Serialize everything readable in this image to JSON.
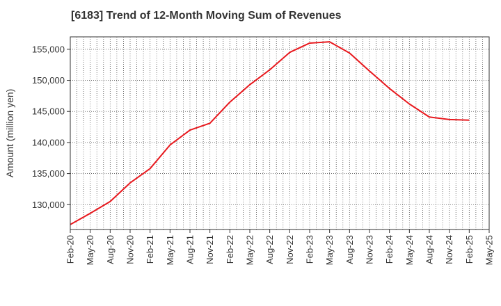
{
  "chart_data": {
    "type": "line",
    "title": "[6183]  Trend of 12-Month Moving Sum of Revenues",
    "xlabel": "",
    "ylabel": "Amount (million yen)",
    "ylim": [
      126000,
      157000
    ],
    "yticks": [
      130000,
      135000,
      140000,
      145000,
      150000,
      155000
    ],
    "ytick_labels": [
      "130,000",
      "135,000",
      "140,000",
      "145,000",
      "150,000",
      "155,000"
    ],
    "xtick_labels": [
      "Feb-20",
      "May-20",
      "Aug-20",
      "Nov-20",
      "Feb-21",
      "May-21",
      "Aug-21",
      "Nov-21",
      "Feb-22",
      "May-22",
      "Aug-22",
      "Nov-22",
      "Feb-23",
      "May-23",
      "Aug-23",
      "Nov-23",
      "Feb-24",
      "May-24",
      "Aug-24",
      "Nov-24",
      "Feb-25",
      "May-25"
    ],
    "grid": true,
    "series": [
      {
        "name": "",
        "color": "#e8191e",
        "x": [
          "Feb-20",
          "May-20",
          "Aug-20",
          "Nov-20",
          "Feb-21",
          "May-21",
          "Aug-21",
          "Nov-21",
          "Feb-22",
          "May-22",
          "Aug-22",
          "Nov-22",
          "Feb-23",
          "May-23",
          "Aug-23",
          "Nov-23",
          "Feb-24",
          "May-24",
          "Aug-24",
          "Nov-24",
          "Feb-25"
        ],
        "values": [
          126800,
          128600,
          130500,
          133500,
          135800,
          139600,
          142000,
          143100,
          146500,
          149300,
          151700,
          154500,
          156000,
          156200,
          154400,
          151500,
          148700,
          146200,
          144100,
          143700,
          143600
        ]
      }
    ]
  }
}
